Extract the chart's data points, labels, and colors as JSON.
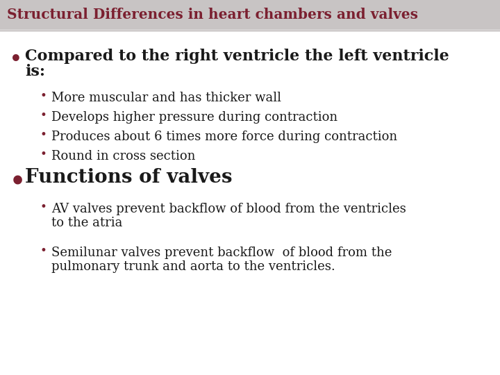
{
  "title": "Structural Differences in heart chambers and valves",
  "title_color": "#7B2030",
  "title_fontsize": 14.5,
  "bg_color": "#FFFFFF",
  "header_bg": "#C8C4C4",
  "line_color": "#A09898",
  "bullet_color": "#7B2030",
  "text_color": "#1A1A1A",
  "main_bullet1_line1": "Compared to the right ventricle the left ventricle",
  "main_bullet1_line2": "is:",
  "main_bullet1_fontsize": 16,
  "sub_bullets1": [
    "More muscular and has thicker wall",
    "Develops higher pressure during contraction",
    "Produces about 6 times more force during contraction",
    "Round in cross section"
  ],
  "sub_bullet_fontsize": 13,
  "main_bullet2": "Functions of valves",
  "main_bullet2_fontsize": 20,
  "sub_bullets2_line1": [
    "AV valves prevent backflow of blood from the ventricles",
    "Semilunar valves prevent backflow  of blood from the"
  ],
  "sub_bullets2_line2": [
    "to the atria",
    "pulmonary trunk and aorta to the ventricles."
  ],
  "sub_bullet2_fontsize": 13
}
